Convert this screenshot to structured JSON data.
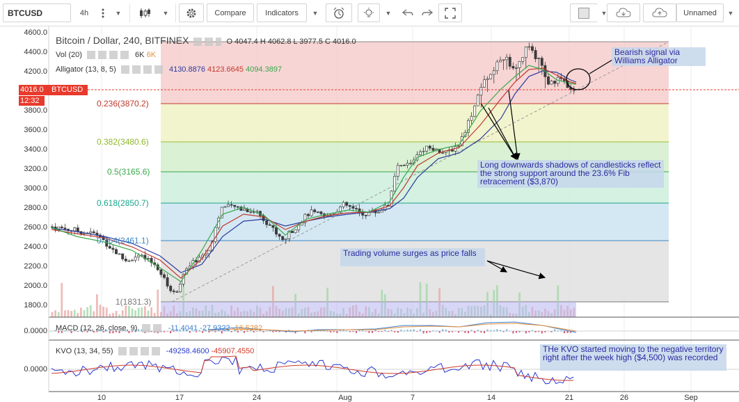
{
  "toolbar": {
    "symbol": "BTCUSD",
    "interval": "4h",
    "compare_label": "Compare",
    "indicators_label": "Indicators",
    "layout_name": "Unnamed"
  },
  "chart": {
    "title": "Bitcoin / Dollar, 240, BITFINEX",
    "ohlc": "O 4047.4  H 4062.8  L 3977.5  C 4016.0",
    "volume_label": "Vol (20)",
    "volume_value_1": "6K",
    "volume_value_2": "6K",
    "alligator_label": "Alligator (13, 8, 5)",
    "alligator_jaw": "4130.8876",
    "alligator_teeth": "4123.6645",
    "alligator_lips": "4094.3897",
    "current_price": "4016.0",
    "current_symbol": "BTCUSD",
    "countdown": "12:32",
    "macd_label": "MACD (12, 26, close, 9)",
    "macd_values": [
      "-11.4041",
      "-27.9322",
      "-16.5282"
    ],
    "macd_axis": "0.0000",
    "kvo_label": "KVO (13, 34, 55)",
    "kvo_values": [
      "-49258.4600",
      "-45907.4550"
    ],
    "kvo_axis": "0.0000"
  },
  "y_axis": [
    "4600.0",
    "4400.0",
    "4200.0",
    "3800.0",
    "3600.0",
    "3400.0",
    "3200.0",
    "3000.0",
    "2800.0",
    "2600.0",
    "2400.0",
    "2200.0",
    "2000.0",
    "1800.0"
  ],
  "x_axis": [
    "10",
    "17",
    "24",
    "Aug",
    "7",
    "14",
    "21",
    "26",
    "Sep"
  ],
  "fib_levels": [
    {
      "label": "0.236(3870.2)",
      "color": "#c0392b"
    },
    {
      "label": "0.382(3480.6)",
      "color": "#8fb82a"
    },
    {
      "label": "0.5(3165.6)",
      "color": "#3aa84a"
    },
    {
      "label": "0.618(2850.7)",
      "color": "#1aa48a"
    },
    {
      "label": "0.764(2461.1)",
      "color": "#3a86c4"
    },
    {
      "label": "1(1831.3)",
      "color": "#777777"
    }
  ],
  "annotations": {
    "bearish": "Bearish signal via Williams Alligator",
    "shadows": "Long downwards shadows of candlesticks reflect the strong support around the 23.6% Fib retracement ($3,870)",
    "volume": "Trading volume surges as price falls",
    "kvo": "THe KVO started moving to the negative territory right after the week high ($4,500) was recorded"
  },
  "colors": {
    "accent_red": "#e83a2c",
    "candle_up": "#4a4a4a",
    "alligator_jaw": "#2a3a9c",
    "alligator_teeth": "#c0392b",
    "alligator_lips": "#3aa84a",
    "annotation_text": "#2a2aa0"
  }
}
